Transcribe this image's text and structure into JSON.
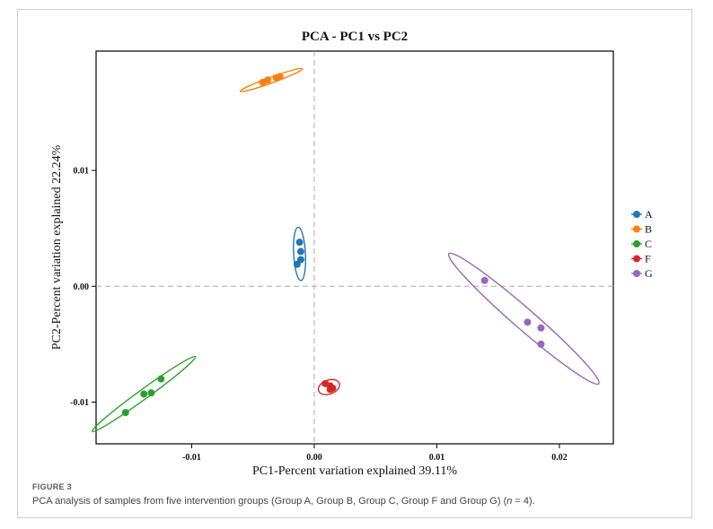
{
  "figure": {
    "label": "FIGURE 3",
    "caption_before_n": "PCA analysis of samples from five intervention groups (Group A, Group B, Group C, Group F and Group G) (",
    "caption_n": "n",
    "caption_after_n": " = 4)."
  },
  "colors": {
    "A": "#1f77b4",
    "B": "#ff7f0e",
    "C": "#2ca02c",
    "F": "#d62728",
    "G": "#9467bd"
  },
  "chart_data": {
    "type": "scatter",
    "title": "PCA - PC1 vs PC2",
    "xlabel": "PC1-Percent variation explained 39.11%",
    "ylabel": "PC2-Percent variation explained 22.24%",
    "xlim": [
      -0.0178,
      0.0244
    ],
    "ylim": [
      -0.0136,
      0.0203
    ],
    "xticks": [
      -0.01,
      0.0,
      0.01,
      0.02
    ],
    "xtick_labels": [
      "-0.01",
      "0.00",
      "0.01",
      "0.02"
    ],
    "yticks": [
      -0.01,
      0.0,
      0.01
    ],
    "ytick_labels": [
      "-0.01",
      "0.00",
      "0.01"
    ],
    "reference_lines": {
      "x": 0,
      "y": 0
    },
    "grid": false,
    "legend_position": "right",
    "series": [
      {
        "name": "A",
        "points": [
          [
            -0.0012,
            0.0038
          ],
          [
            -0.0011,
            0.003
          ],
          [
            -0.0011,
            0.0023
          ],
          [
            -0.0014,
            0.0019
          ]
        ],
        "ellipse": {
          "cx": -0.0012,
          "cy": 0.0028,
          "rx": 0.00048,
          "ry": 0.0023,
          "angle": -3
        }
      },
      {
        "name": "B",
        "points": [
          [
            -0.0042,
            0.0176
          ],
          [
            -0.0038,
            0.0178
          ],
          [
            -0.0031,
            0.018
          ],
          [
            -0.0028,
            0.0181
          ]
        ],
        "ellipse": {
          "cx": -0.0035,
          "cy": 0.0178,
          "rx": 0.0027,
          "ry": 0.00025,
          "angle": -20
        }
      },
      {
        "name": "C",
        "points": [
          [
            -0.0154,
            -0.0109
          ],
          [
            -0.0139,
            -0.0093
          ],
          [
            -0.0133,
            -0.0092
          ],
          [
            -0.0125,
            -0.008
          ]
        ],
        "ellipse": {
          "cx": -0.0139,
          "cy": -0.0093,
          "rx": 0.0052,
          "ry": 0.00042,
          "angle": -36
        }
      },
      {
        "name": "F",
        "points": [
          [
            0.0009,
            -0.0084
          ],
          [
            0.0013,
            -0.0086
          ],
          [
            0.0015,
            -0.0088
          ],
          [
            0.0013,
            -0.0089
          ]
        ],
        "ellipse": {
          "cx": 0.0012,
          "cy": -0.0087,
          "rx": 0.0009,
          "ry": 0.0006,
          "angle": -20
        }
      },
      {
        "name": "G",
        "points": [
          [
            0.0139,
            0.0005
          ],
          [
            0.0174,
            -0.0031
          ],
          [
            0.0185,
            -0.0036
          ],
          [
            0.0185,
            -0.005
          ]
        ],
        "ellipse": {
          "cx": 0.0171,
          "cy": -0.0028,
          "rx": 0.0081,
          "ry": 0.0009,
          "angle": 41
        }
      }
    ]
  }
}
